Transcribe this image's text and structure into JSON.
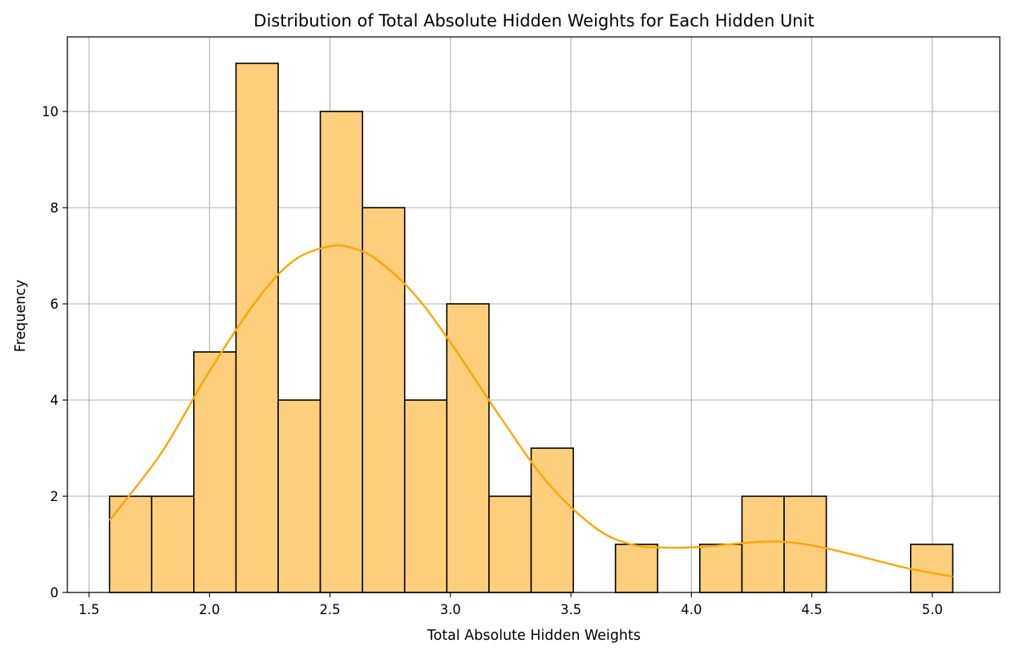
{
  "chart_data": {
    "type": "bar",
    "subtype": "histogram",
    "title": "Distribution of Total Absolute Hidden Weights for Each Hidden Unit",
    "xlabel": "Total Absolute Hidden Weights",
    "ylabel": "Frequency",
    "xlim": [
      1.41,
      5.28
    ],
    "ylim": [
      0,
      11.55
    ],
    "xticks": [
      1.5,
      2.0,
      2.5,
      3.0,
      3.5,
      4.0,
      4.5,
      5.0
    ],
    "xtick_labels": [
      "1.5",
      "2.0",
      "2.5",
      "3.0",
      "3.5",
      "4.0",
      "4.5",
      "5.0"
    ],
    "yticks": [
      0,
      2,
      4,
      6,
      8,
      10
    ],
    "ytick_labels": [
      "0",
      "2",
      "4",
      "6",
      "8",
      "10"
    ],
    "grid": true,
    "bin_edges": [
      1.585,
      1.76,
      1.935,
      2.11,
      2.285,
      2.46,
      2.635,
      2.81,
      2.985,
      3.16,
      3.335,
      3.51,
      3.685,
      3.86,
      4.035,
      4.21,
      4.385,
      4.56,
      4.735,
      4.91,
      5.085
    ],
    "counts": [
      2,
      2,
      5,
      11,
      4,
      10,
      8,
      4,
      6,
      2,
      3,
      0,
      1,
      0,
      1,
      2,
      2,
      0,
      0,
      1
    ],
    "kde": {
      "x": [
        1.585,
        1.8,
        2.0,
        2.2,
        2.35,
        2.5,
        2.6,
        2.7,
        2.85,
        3.0,
        3.2,
        3.4,
        3.6,
        3.75,
        3.9,
        4.05,
        4.2,
        4.35,
        4.5,
        4.7,
        4.9,
        5.085
      ],
      "y": [
        1.5,
        2.9,
        4.6,
        6.1,
        6.9,
        7.2,
        7.15,
        6.9,
        6.2,
        5.2,
        3.7,
        2.3,
        1.35,
        1.0,
        0.93,
        0.95,
        1.02,
        1.06,
        0.98,
        0.75,
        0.5,
        0.33
      ]
    },
    "colors": {
      "bar_fill": "#fdce7c",
      "bar_edge": "#000000",
      "kde_line": "#ffa500",
      "grid": "#b0b0b0"
    }
  }
}
